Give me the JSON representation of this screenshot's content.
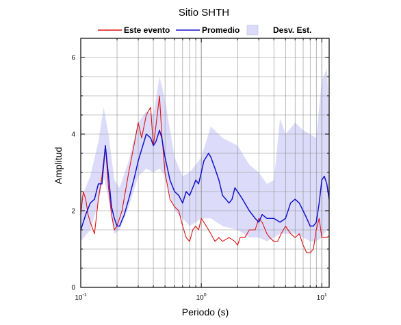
{
  "chart_data": {
    "type": "line",
    "title": "Sitio SHTH",
    "xlabel": "Periodo (s)",
    "ylabel": "Amplitud",
    "xscale": "log",
    "xlim": [
      0.1,
      11.5
    ],
    "ylim": [
      0,
      6.5
    ],
    "grid": true,
    "legend_position": "top-center",
    "legend": [
      {
        "label": "Este evento",
        "kind": "line",
        "color": "#dd1111"
      },
      {
        "label": "Promedio",
        "kind": "line",
        "color": "#1111cc"
      },
      {
        "label": "Desv. Est.",
        "kind": "band",
        "color": "#dcdcfa"
      }
    ],
    "x_ticks": [
      {
        "value": 0.1,
        "base": "10",
        "exp": "-1"
      },
      {
        "value": 1,
        "base": "10",
        "exp": "0"
      },
      {
        "value": 10,
        "base": "10",
        "exp": "1"
      }
    ],
    "y_ticks": [
      {
        "value": 0,
        "label": "0"
      },
      {
        "value": 2,
        "label": "2"
      },
      {
        "value": 4,
        "label": "4"
      },
      {
        "value": 6,
        "label": "6"
      }
    ],
    "band": {
      "name": "Desv. Est.",
      "x": [
        0.1,
        0.12,
        0.14,
        0.155,
        0.17,
        0.19,
        0.21,
        0.25,
        0.3,
        0.35,
        0.4,
        0.45,
        0.5,
        0.6,
        0.7,
        0.8,
        0.9,
        1.0,
        1.2,
        1.5,
        2.0,
        2.5,
        3.0,
        3.5,
        4.0,
        4.5,
        5.0,
        6.0,
        7.0,
        8.0,
        9.0,
        10.0,
        11.0,
        11.5
      ],
      "upper": [
        2.3,
        2.9,
        3.8,
        4.7,
        4.0,
        2.8,
        2.6,
        3.3,
        4.3,
        4.6,
        4.5,
        5.5,
        4.9,
        3.4,
        2.9,
        3.0,
        3.2,
        3.4,
        4.2,
        3.9,
        3.7,
        3.2,
        3.0,
        2.7,
        2.8,
        4.4,
        4.0,
        4.3,
        4.1,
        4.0,
        3.9,
        5.4,
        5.7,
        4.6
      ],
      "lower": [
        1.2,
        1.5,
        2.2,
        2.9,
        2.3,
        1.4,
        1.5,
        2.1,
        2.9,
        3.1,
        3.0,
        3.1,
        2.9,
        2.0,
        1.8,
        1.6,
        1.7,
        1.8,
        1.8,
        1.6,
        1.5,
        1.3,
        1.3,
        1.2,
        1.3,
        1.4,
        1.4,
        1.4,
        1.3,
        1.2,
        1.2,
        1.3,
        1.5,
        1.5
      ]
    },
    "series": [
      {
        "name": "Este evento",
        "color": "#dd1111",
        "x": [
          0.1,
          0.105,
          0.11,
          0.115,
          0.12,
          0.13,
          0.14,
          0.15,
          0.16,
          0.17,
          0.18,
          0.19,
          0.2,
          0.22,
          0.25,
          0.28,
          0.3,
          0.32,
          0.35,
          0.38,
          0.4,
          0.42,
          0.45,
          0.47,
          0.5,
          0.55,
          0.6,
          0.65,
          0.7,
          0.75,
          0.8,
          0.85,
          0.9,
          0.95,
          1.0,
          1.05,
          1.1,
          1.2,
          1.3,
          1.4,
          1.5,
          1.7,
          1.9,
          2.0,
          2.1,
          2.3,
          2.5,
          2.8,
          3.0,
          3.2,
          3.5,
          3.7,
          4.0,
          4.3,
          4.6,
          5.0,
          5.5,
          6.0,
          6.5,
          7.0,
          7.5,
          8.0,
          8.5,
          9.0,
          9.5,
          10.0,
          10.5,
          11.0,
          11.5
        ],
        "y": [
          1.9,
          2.5,
          2.3,
          1.9,
          1.7,
          1.4,
          2.3,
          2.9,
          3.7,
          2.6,
          1.9,
          1.5,
          1.6,
          2.0,
          3.0,
          3.8,
          4.3,
          3.9,
          4.5,
          4.7,
          3.7,
          4.2,
          5.0,
          4.0,
          3.0,
          2.3,
          2.1,
          2.0,
          1.6,
          1.3,
          1.2,
          1.5,
          1.6,
          1.5,
          1.8,
          1.7,
          1.6,
          1.4,
          1.2,
          1.3,
          1.2,
          1.3,
          1.2,
          1.1,
          1.3,
          1.3,
          1.5,
          1.5,
          1.8,
          1.7,
          1.4,
          1.3,
          1.2,
          1.2,
          1.4,
          1.6,
          1.4,
          1.3,
          1.4,
          1.1,
          0.9,
          0.9,
          1.0,
          1.5,
          1.8,
          1.3,
          1.3,
          1.3,
          1.35
        ]
      },
      {
        "name": "Promedio",
        "color": "#1111cc",
        "x": [
          0.1,
          0.105,
          0.11,
          0.12,
          0.13,
          0.14,
          0.15,
          0.16,
          0.17,
          0.18,
          0.19,
          0.2,
          0.21,
          0.23,
          0.25,
          0.28,
          0.3,
          0.32,
          0.35,
          0.38,
          0.4,
          0.42,
          0.45,
          0.47,
          0.5,
          0.55,
          0.6,
          0.65,
          0.7,
          0.75,
          0.8,
          0.85,
          0.9,
          0.95,
          1.0,
          1.05,
          1.1,
          1.15,
          1.2,
          1.3,
          1.4,
          1.5,
          1.6,
          1.7,
          1.8,
          1.9,
          2.0,
          2.2,
          2.5,
          2.8,
          3.0,
          3.2,
          3.5,
          4.0,
          4.5,
          5.0,
          5.5,
          6.0,
          6.5,
          7.0,
          7.5,
          8.0,
          8.5,
          9.0,
          9.5,
          10.0,
          10.5,
          11.0,
          11.5
        ],
        "y": [
          1.5,
          1.7,
          1.9,
          2.2,
          2.3,
          2.7,
          2.7,
          3.7,
          2.9,
          2.1,
          1.8,
          1.6,
          1.6,
          1.9,
          2.3,
          2.9,
          3.3,
          3.6,
          4.0,
          3.9,
          3.7,
          3.8,
          4.1,
          3.9,
          3.4,
          2.8,
          2.5,
          2.4,
          2.2,
          2.5,
          2.4,
          2.6,
          2.8,
          2.7,
          3.0,
          3.3,
          3.4,
          3.5,
          3.4,
          3.1,
          2.8,
          2.4,
          2.3,
          2.2,
          2.3,
          2.6,
          2.5,
          2.3,
          2.0,
          1.8,
          1.7,
          1.9,
          1.8,
          1.8,
          1.7,
          1.8,
          2.2,
          2.3,
          2.2,
          2.0,
          1.8,
          1.6,
          1.6,
          1.7,
          2.2,
          2.8,
          2.9,
          2.7,
          2.3
        ]
      }
    ]
  }
}
